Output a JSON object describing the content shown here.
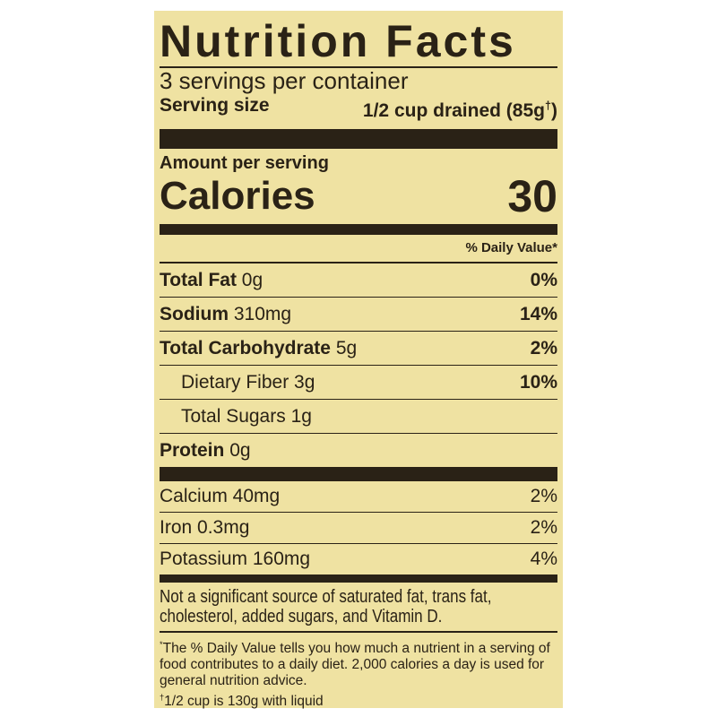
{
  "title": "Nutrition Facts",
  "servings_per_container": "3 servings per container",
  "serving_size": {
    "label": "Serving size",
    "value": "1/2 cup drained (85g",
    "dagger": "†",
    ")": ")"
  },
  "amount_per_serving": "Amount per serving",
  "calories": {
    "label": "Calories",
    "value": "30"
  },
  "daily_value_header": "% Daily Value*",
  "nutrients": [
    {
      "name": "Total Fat",
      "amount": "0g",
      "dv": "0%"
    },
    {
      "name": "Sodium",
      "amount": "310mg",
      "dv": "14%"
    },
    {
      "name": "Total Carbohydrate",
      "amount": "5g",
      "dv": "2%"
    },
    {
      "name": "Dietary Fiber",
      "amount": "3g",
      "dv": "10%"
    },
    {
      "name": "Total Sugars",
      "amount": "1g",
      "dv": ""
    },
    {
      "name": "Protein",
      "amount": "0g",
      "dv": ""
    }
  ],
  "vitamins": [
    {
      "text": "Calcium 40mg",
      "dv": "2%"
    },
    {
      "text": "Iron 0.3mg",
      "dv": "2%"
    },
    {
      "text": "Potassium 160mg",
      "dv": "4%"
    }
  ],
  "not_significant": "Not a significant source of saturated fat, trans fat, cholesterol, added sugars, and Vitamin D.",
  "footnote_dv": "The % Daily Value tells you how much a nutrient in a serving of food contributes to a daily diet. 2,000 calories a day is used for general nutrition advice.",
  "footnote_dv_mark": "*",
  "footnote_cup": "1/2 cup is 130g with liquid",
  "footnote_cup_mark": "†",
  "colors": {
    "background": "#efe2a2",
    "text": "#2a2216"
  }
}
